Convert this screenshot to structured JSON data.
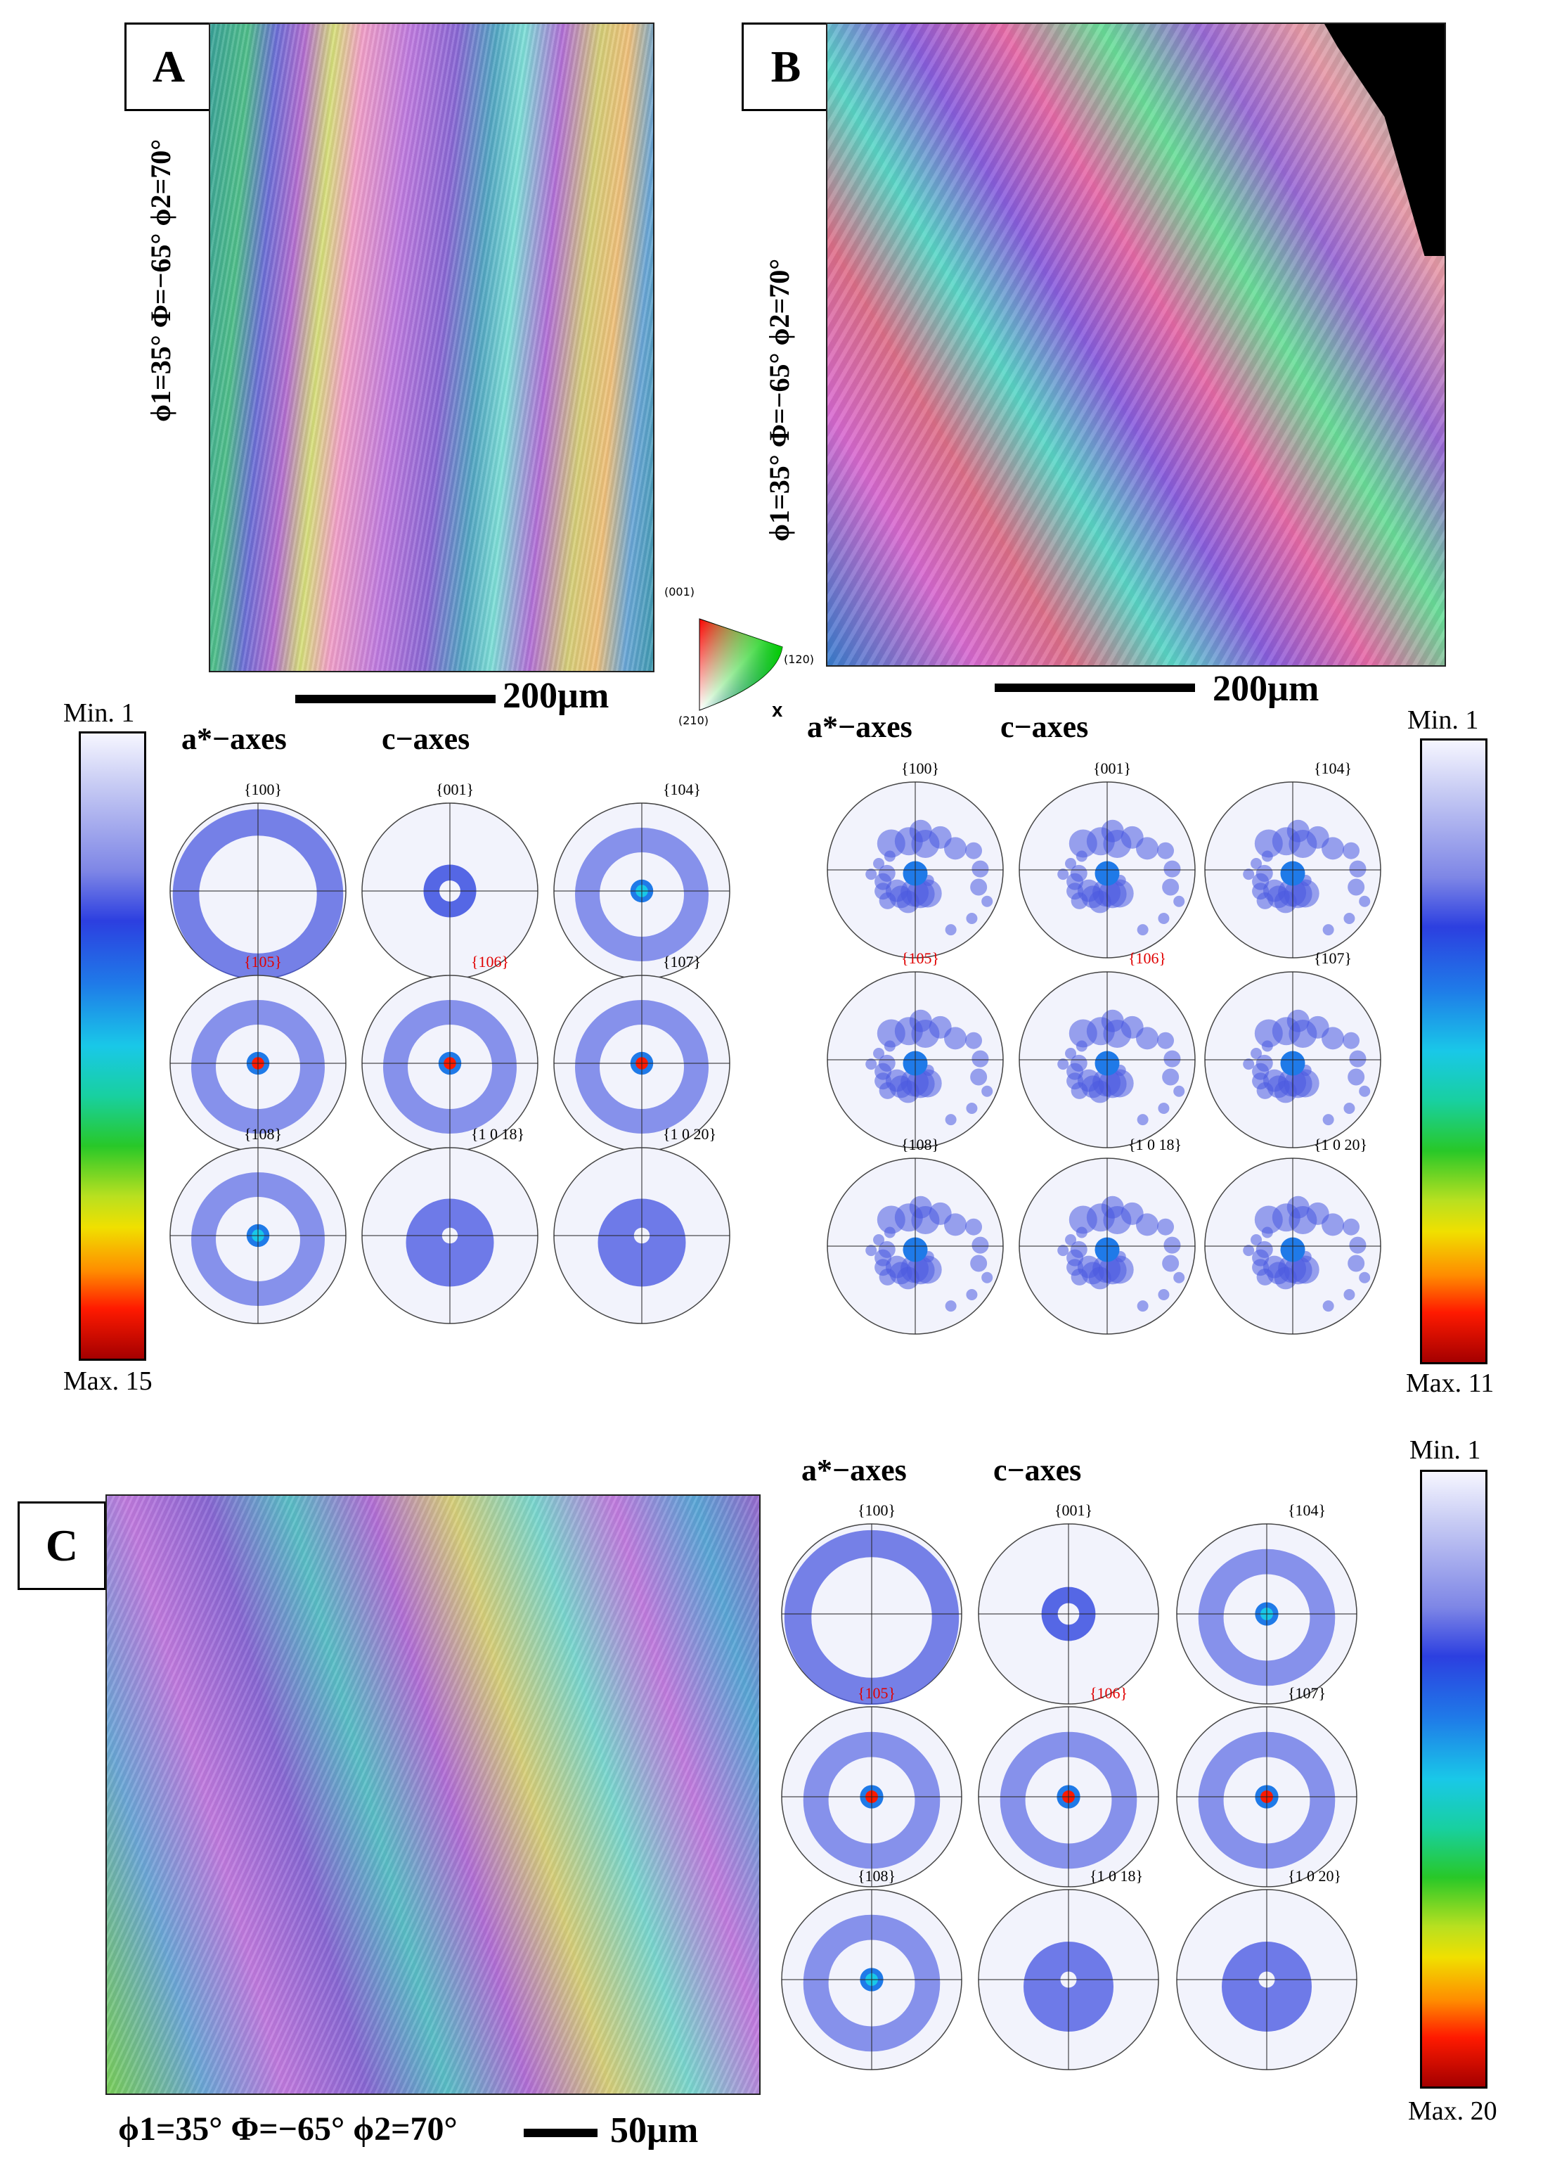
{
  "panel_A": {
    "label": "A",
    "euler": "ϕ1=35° Φ=−65° ϕ2=70°",
    "scale_label": "200µm",
    "axes_titles": {
      "a_axes": "a*−axes",
      "c_axes": "c−axes"
    },
    "pole_figures": [
      "{100}",
      "{001}",
      "{104}",
      "{105}",
      "{106}",
      "{107}",
      "{108}",
      "{1 0 18}",
      "{1 0 20}"
    ],
    "colorbar": {
      "min_label": "Min. 1",
      "max_label": "Max. 15",
      "min": 1,
      "max": 15
    }
  },
  "panel_B": {
    "label": "B",
    "euler": "ϕ1=35° Φ=−65° ϕ2=70°",
    "scale_label": "200µm",
    "axes_titles": {
      "a_axes": "a*−axes",
      "c_axes": "c−axes"
    },
    "pole_figures": [
      "{100}",
      "{001}",
      "{104}",
      "{105}",
      "{106}",
      "{107}",
      "{108}",
      "{1 0 18}",
      "{1 0 20}"
    ],
    "colorbar": {
      "min_label": "Min. 1",
      "max_label": "Max. 11",
      "min": 1,
      "max": 11
    }
  },
  "panel_C": {
    "label": "C",
    "euler": "ϕ1=35° Φ=−65° ϕ2=70°",
    "scale_label": "50µm",
    "axes_titles": {
      "a_axes": "a*−axes",
      "c_axes": "c−axes"
    },
    "pole_figures": [
      "{100}",
      "{001}",
      "{104}",
      "{105}",
      "{106}",
      "{107}",
      "{108}",
      "{1 0 18}",
      "{1 0 20}"
    ],
    "colorbar": {
      "min_label": "Min. 1",
      "max_label": "Max. 20",
      "min": 1,
      "max": 20
    }
  },
  "ipf_key": {
    "top": "(001)",
    "right": "(120)",
    "bottom_left": "(210)",
    "direction": "X"
  },
  "colors": {
    "highlight_label": "#e00000",
    "pf_max": "#ff1a00",
    "pf_mid": "#2c3fe0"
  }
}
